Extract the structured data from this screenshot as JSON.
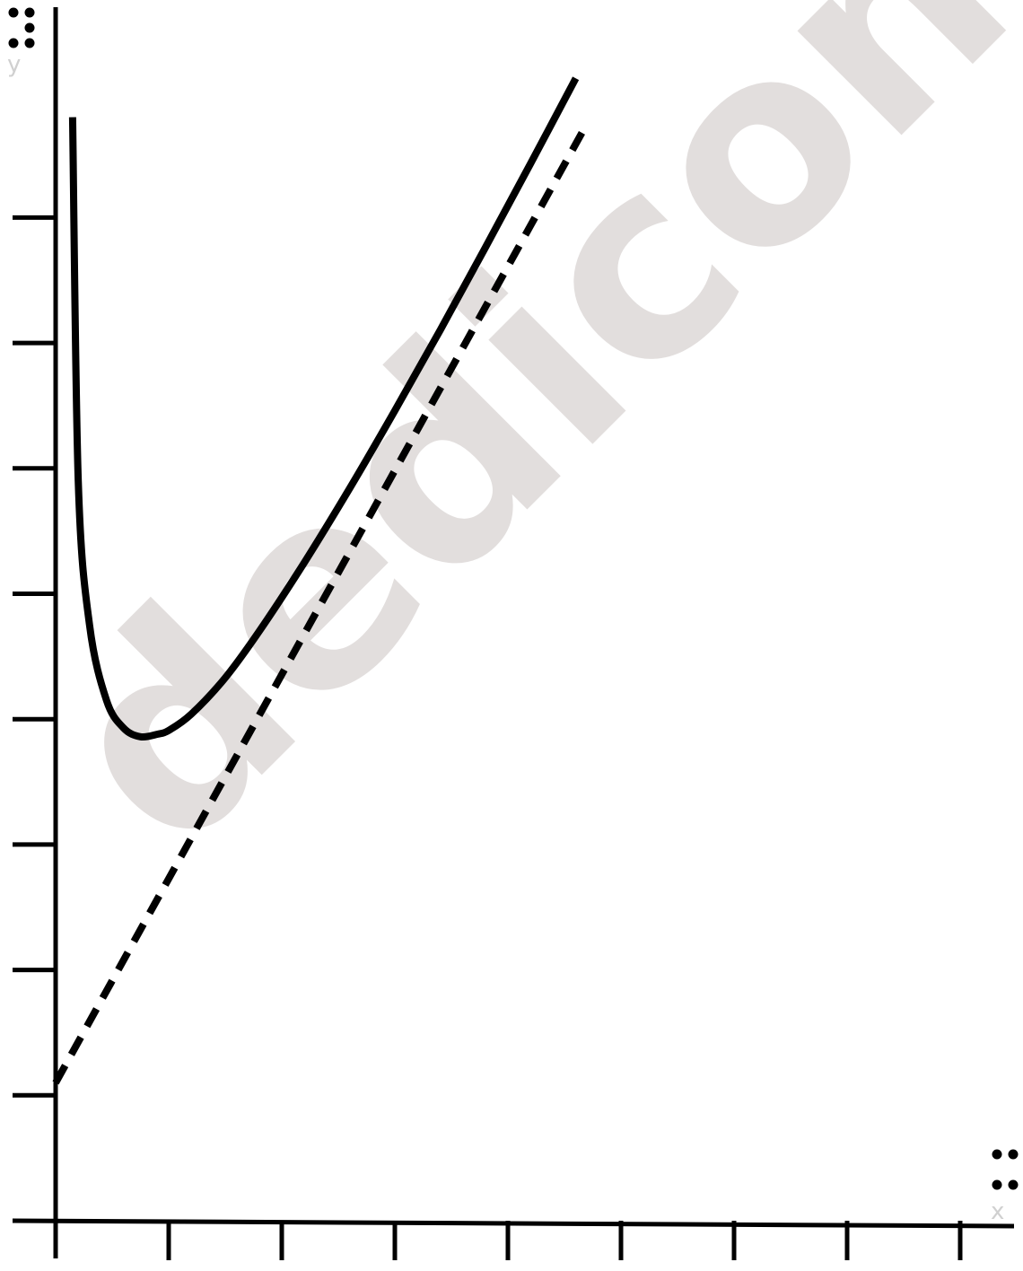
{
  "chart_data": {
    "type": "line",
    "title": "",
    "xlabel": "x",
    "ylabel": "y",
    "xlim": [
      0,
      8.5
    ],
    "ylim": [
      0,
      8.6
    ],
    "x_ticks": [
      1,
      2,
      3,
      4,
      5,
      6,
      7,
      8
    ],
    "y_ticks": [
      1,
      2,
      3,
      4,
      5,
      6,
      7,
      8
    ],
    "grid": false,
    "legend": "none",
    "series": [
      {
        "style": "solid",
        "x": [
          0.15,
          0.2,
          0.3,
          0.45,
          0.6,
          0.75,
          0.9,
          1.0,
          1.2,
          1.5,
          1.8,
          2.2,
          2.6,
          3.0,
          3.4,
          3.8,
          4.2,
          4.6
        ],
        "y": [
          8.8,
          5.9,
          4.75,
          4.15,
          3.93,
          3.86,
          3.88,
          3.91,
          4.04,
          4.33,
          4.7,
          5.25,
          5.84,
          6.46,
          7.1,
          7.76,
          8.43,
          9.11
        ]
      },
      {
        "style": "dashed",
        "x": [
          0,
          4.7
        ],
        "y": [
          1.1,
          8.75
        ]
      }
    ]
  },
  "braille": {
    "y_label_cell": "⠽",
    "x_label_cell": "⠭"
  },
  "watermark": {
    "text": "dedicon"
  }
}
